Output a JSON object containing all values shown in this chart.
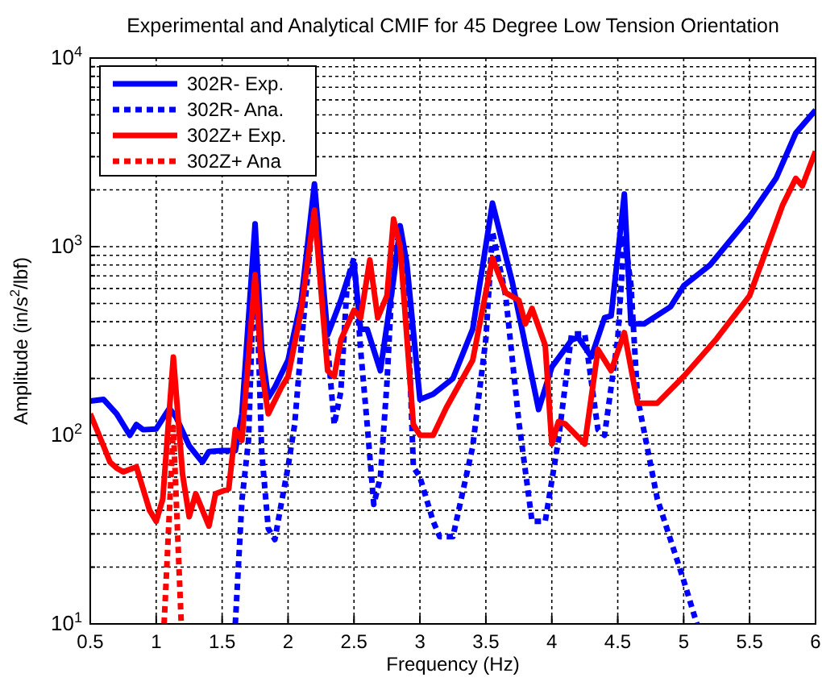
{
  "chart_data": {
    "type": "line",
    "title": "Experimental and Analytical CMIF for 45 Degree Low Tension Orientation",
    "xlabel": "Frequency (Hz)",
    "ylabel": "Amplitude (in/s$^{2}$/lbf)",
    "log": "y",
    "grid": true,
    "legend": "top left",
    "xlim": [
      0.5,
      6
    ],
    "xticks": [
      0.5,
      1,
      1.5,
      2,
      2.5,
      3,
      3.5,
      4,
      4.5,
      5,
      5.5,
      6
    ],
    "ylim": [
      10,
      10000
    ],
    "yticks": [
      {
        "value": 10,
        "label": "10$^{1}$"
      },
      {
        "value": 20,
        "label": null
      },
      {
        "value": 30,
        "label": null
      },
      {
        "value": 40,
        "label": null
      },
      {
        "value": 50,
        "label": null
      },
      {
        "value": 60,
        "label": null
      },
      {
        "value": 70,
        "label": null
      },
      {
        "value": 80,
        "label": null
      },
      {
        "value": 90,
        "label": null
      },
      {
        "value": 100,
        "label": "10$^{2}$"
      },
      {
        "value": 200,
        "label": null
      },
      {
        "value": 300,
        "label": null
      },
      {
        "value": 400,
        "label": null
      },
      {
        "value": 500,
        "label": null
      },
      {
        "value": 600,
        "label": null
      },
      {
        "value": 700,
        "label": null
      },
      {
        "value": 800,
        "label": null
      },
      {
        "value": 900,
        "label": null
      },
      {
        "value": 1000,
        "label": "10$^{3}$"
      },
      {
        "value": 2000,
        "label": null
      },
      {
        "value": 3000,
        "label": null
      },
      {
        "value": 4000,
        "label": null
      },
      {
        "value": 5000,
        "label": null
      },
      {
        "value": 6000,
        "label": null
      },
      {
        "value": 7000,
        "label": null
      },
      {
        "value": 8000,
        "label": null
      },
      {
        "value": 9000,
        "label": null
      },
      {
        "value": 10000,
        "label": "10$^{4}$"
      }
    ],
    "series": [
      {
        "name": "302R- Exp.",
        "color": "#0000ff",
        "line_style": "solid",
        "x": [
          0.5,
          0.6,
          0.7,
          0.8,
          0.85,
          0.9,
          1.0,
          1.1,
          1.15,
          1.25,
          1.35,
          1.4,
          1.5,
          1.6,
          1.65,
          1.75,
          1.8,
          1.85,
          1.9,
          2.0,
          2.1,
          2.2,
          2.3,
          2.4,
          2.45,
          2.5,
          2.55,
          2.6,
          2.7,
          2.8,
          2.85,
          2.9,
          3.0,
          3.1,
          3.25,
          3.4,
          3.55,
          3.7,
          3.9,
          4.0,
          4.15,
          4.2,
          4.3,
          4.4,
          4.45,
          4.55,
          4.6,
          4.7,
          4.9,
          5.0,
          5.2,
          5.5,
          5.7,
          5.85,
          6.0
        ],
        "values": [
          152,
          155,
          130,
          100,
          114,
          107,
          108,
          139,
          125,
          88,
          72,
          82,
          83,
          83,
          130,
          1320,
          285,
          158,
          180,
          250,
          520,
          2150,
          340,
          520,
          670,
          810,
          365,
          365,
          220,
          670,
          1290,
          820,
          155,
          165,
          200,
          365,
          1700,
          650,
          137,
          230,
          320,
          330,
          260,
          420,
          430,
          1900,
          390,
          390,
          480,
          620,
          800,
          1440,
          2300,
          4000,
          5300
        ]
      },
      {
        "name": "302R- Ana.",
        "color": "#0000ff",
        "line_style": "dotted",
        "x": [
          1.6,
          1.65,
          1.7,
          1.75,
          1.8,
          1.85,
          1.9,
          1.95,
          2.0,
          2.05,
          2.1,
          2.2,
          2.25,
          2.3,
          2.35,
          2.4,
          2.45,
          2.5,
          2.55,
          2.6,
          2.65,
          2.7,
          2.75,
          2.8,
          2.85,
          2.9,
          2.95,
          3.0,
          3.1,
          3.15,
          3.25,
          3.4,
          3.5,
          3.55,
          3.65,
          3.75,
          3.85,
          3.95,
          4.05,
          4.15,
          4.25,
          4.35,
          4.4,
          4.5,
          4.55,
          4.6,
          4.65,
          4.8,
          5.0,
          5.1
        ],
        "values": [
          10,
          45,
          94,
          1120,
          82,
          32,
          28,
          44,
          68,
          114,
          300,
          1780,
          630,
          300,
          114,
          170,
          670,
          870,
          285,
          114,
          43,
          60,
          190,
          920,
          1200,
          670,
          68,
          60,
          35,
          29,
          29,
          87,
          325,
          1200,
          550,
          118,
          35,
          35,
          94,
          345,
          345,
          107,
          100,
          325,
          1140,
          630,
          158,
          46,
          17,
          10
        ]
      },
      {
        "name": "302Z+ Exp.",
        "color": "#ff0000",
        "line_style": "solid",
        "x": [
          0.5,
          0.6,
          0.65,
          0.7,
          0.75,
          0.85,
          0.95,
          1.0,
          1.05,
          1.13,
          1.2,
          1.25,
          1.3,
          1.4,
          1.45,
          1.55,
          1.6,
          1.65,
          1.75,
          1.8,
          1.85,
          1.95,
          2.0,
          2.1,
          2.2,
          2.3,
          2.35,
          2.4,
          2.5,
          2.55,
          2.62,
          2.68,
          2.75,
          2.8,
          2.85,
          2.95,
          3.0,
          3.1,
          3.2,
          3.4,
          3.55,
          3.65,
          3.75,
          3.8,
          3.85,
          3.95,
          4.0,
          4.05,
          4.1,
          4.25,
          4.35,
          4.45,
          4.55,
          4.65,
          4.8,
          5.0,
          5.25,
          5.5,
          5.75,
          5.85,
          5.9,
          6.0
        ],
        "values": [
          130,
          88,
          72,
          67,
          64,
          68,
          40,
          35,
          46,
          260,
          62,
          37,
          49,
          33,
          49,
          52,
          107,
          94,
          710,
          220,
          130,
          180,
          205,
          460,
          1560,
          220,
          205,
          320,
          460,
          420,
          850,
          420,
          550,
          1400,
          1000,
          114,
          100,
          100,
          140,
          250,
          870,
          570,
          520,
          390,
          470,
          300,
          90,
          118,
          115,
          90,
          285,
          220,
          350,
          148,
          148,
          205,
          325,
          550,
          1660,
          2300,
          2100,
          3200
        ]
      },
      {
        "name": "302Z+ Ana",
        "color": "#ff0000",
        "line_style": "dotted",
        "x": [
          1.06,
          1.13,
          1.19
        ],
        "values": [
          10,
          110,
          10
        ]
      }
    ]
  }
}
